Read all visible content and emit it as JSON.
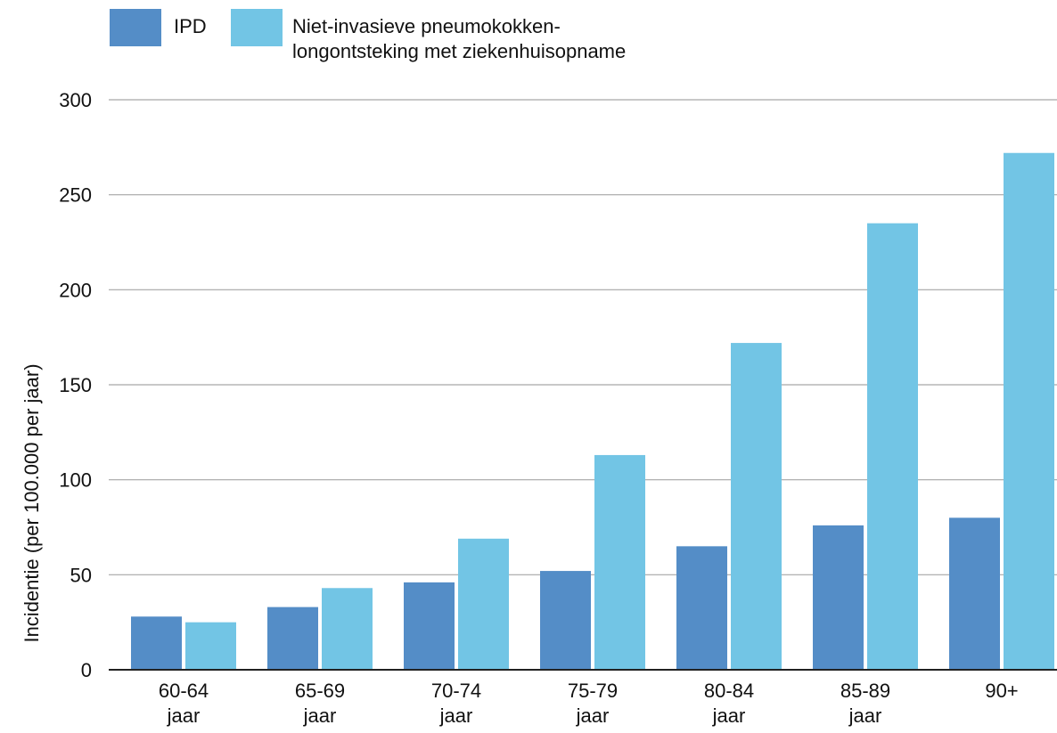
{
  "chart_data": {
    "type": "bar",
    "categories": [
      [
        "60-64",
        "jaar"
      ],
      [
        "65-69",
        "jaar"
      ],
      [
        "70-74",
        "jaar"
      ],
      [
        "75-79",
        "jaar"
      ],
      [
        "80-84",
        "jaar"
      ],
      [
        "85-89",
        "jaar"
      ],
      [
        "90+"
      ]
    ],
    "series": [
      {
        "name": "IPD",
        "color": "#548dc7",
        "values": [
          28,
          33,
          46,
          52,
          65,
          76,
          80
        ]
      },
      {
        "name": "Niet-invasieve pneumokokken-\nlongontsteking met ziekenhuisopname",
        "color": "#72c5e5",
        "values": [
          25,
          43,
          69,
          113,
          172,
          235,
          272
        ]
      }
    ],
    "ylabel": "Incidentie (per 100.000 per jaar)",
    "ylim": [
      0,
      300
    ],
    "yticks": [
      0,
      50,
      100,
      150,
      200,
      250,
      300
    ],
    "grid": true,
    "legend_position": "top-left"
  }
}
